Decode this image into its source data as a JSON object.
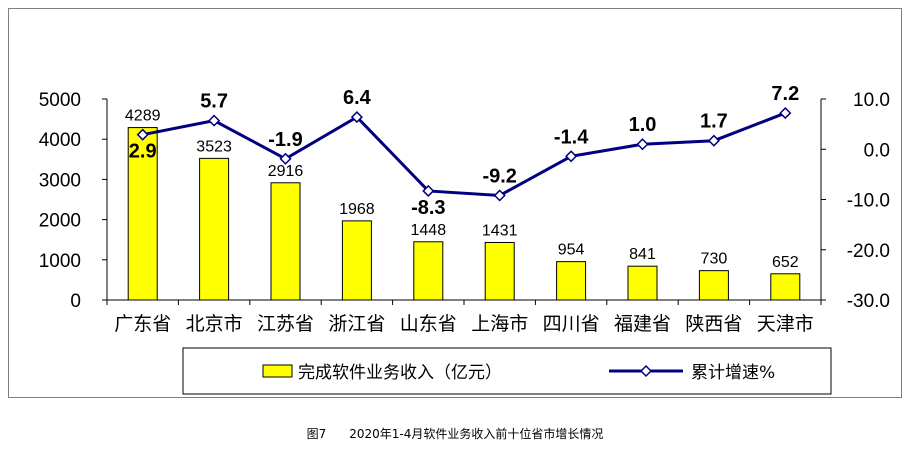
{
  "chart_data": {
    "type": "bar",
    "categories": [
      "广东省",
      "北京市",
      "江苏省",
      "浙江省",
      "山东省",
      "上海市",
      "四川省",
      "福建省",
      "陕西省",
      "天津市"
    ],
    "series": [
      {
        "name": "完成软件业务收入（亿元）",
        "type": "bar",
        "axis": "left",
        "color": "#FFFF00",
        "values": [
          4289,
          3523,
          2916,
          1968,
          1448,
          1431,
          954,
          841,
          730,
          652
        ]
      },
      {
        "name": "累计增速%",
        "type": "line",
        "axis": "right",
        "color": "#000080",
        "values": [
          2.9,
          5.7,
          -1.9,
          6.4,
          -8.3,
          -9.2,
          -1.4,
          1.0,
          1.7,
          7.2
        ]
      }
    ],
    "left_axis": {
      "ylim": [
        0,
        5000
      ],
      "ticks": [
        "0",
        "1000",
        "2000",
        "3000",
        "4000",
        "5000"
      ]
    },
    "right_axis": {
      "ylim": [
        -30,
        10
      ],
      "ticks": [
        "-30.0",
        "-20.0",
        "-10.0",
        "0.0",
        "10.0"
      ]
    },
    "bar_labels": [
      "4289",
      "3523",
      "2916",
      "1968",
      "1448",
      "1431",
      "954",
      "841",
      "730",
      "652"
    ],
    "line_labels": [
      "2.9",
      "5.7",
      "-1.9",
      "6.4",
      "-8.3",
      "-9.2",
      "-1.4",
      "1.0",
      "1.7",
      "7.2"
    ],
    "legend": "bottom",
    "grid": false
  },
  "caption": {
    "figure_label": "图7",
    "title": "2020年1-4月软件业务收入前十位省市增长情况"
  }
}
